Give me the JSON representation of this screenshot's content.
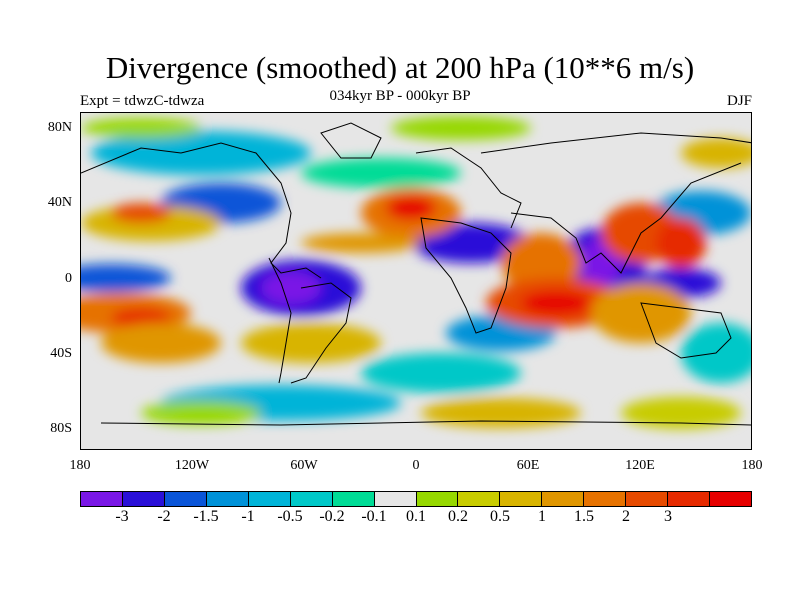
{
  "title": "Divergence (smoothed) at 200 hPa (10**6 m/s)",
  "subtitle": "034kyr BP - 000kyr BP",
  "left_label": "Expt = tdwzC-tdwza",
  "right_label": "DJF",
  "y_axis_labels": [
    "80N",
    "40N",
    "0",
    "40S",
    "80S"
  ],
  "x_axis_labels": [
    "180",
    "120W",
    "60W",
    "0",
    "60E",
    "120E",
    "180"
  ],
  "colorbar": {
    "colors": [
      "#7a17e6",
      "#2a10d8",
      "#0a55d8",
      "#0092d8",
      "#00b4d8",
      "#00c8c8",
      "#00dc96",
      "#e6e6e6",
      "#96d800",
      "#c8cc00",
      "#d8b400",
      "#e09600",
      "#e67200",
      "#e64a00",
      "#e62a00",
      "#e60000"
    ],
    "labels": [
      "-3",
      "-2",
      "-1.5",
      "-1",
      "-0.5",
      "-0.2",
      "-0.1",
      "0.1",
      "0.2",
      "0.5",
      "1",
      "1.5",
      "2",
      "3"
    ]
  }
}
